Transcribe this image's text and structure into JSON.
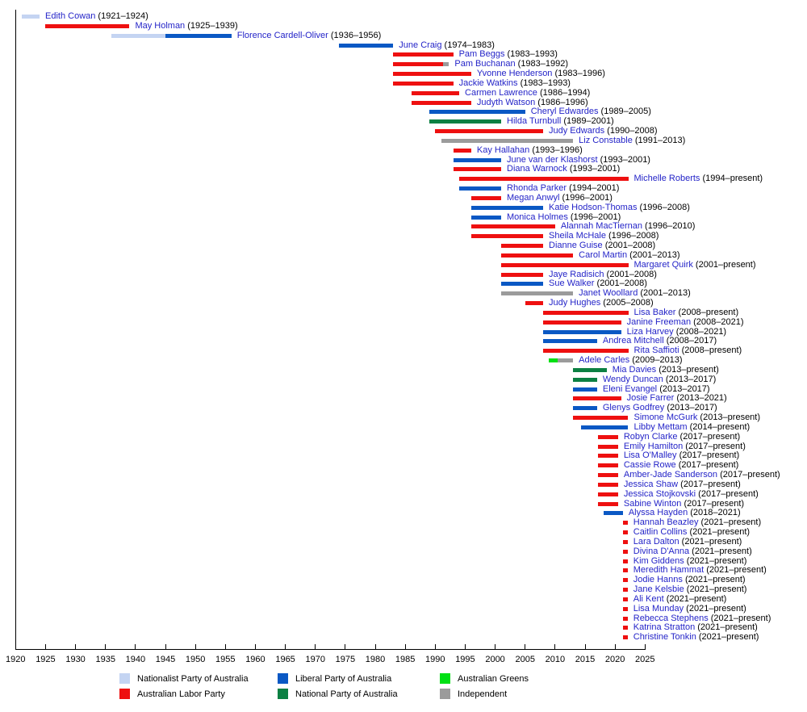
{
  "chart_data": {
    "type": "bar",
    "subtype": "horizontal-timeline",
    "title": "",
    "xlabel": "",
    "ylabel": "",
    "x_range": [
      1920,
      2025
    ],
    "grid": false,
    "axis": {
      "start": 1920,
      "end": 2025,
      "tick_step": 5,
      "ticks": [
        1920,
        1925,
        1930,
        1935,
        1940,
        1945,
        1950,
        1955,
        1960,
        1965,
        1970,
        1975,
        1980,
        1985,
        1990,
        1995,
        2000,
        2005,
        2010,
        2015,
        2020,
        2025
      ]
    },
    "name_link_color": "#2424c8",
    "year_text_color": "#000000",
    "parties": {
      "nationalist": {
        "label": "Nationalist Party of Australia",
        "color": "#c4d4f2"
      },
      "labor": {
        "label": "Australian Labor Party",
        "color": "#ee1010"
      },
      "liberal": {
        "label": "Liberal Party of Australia",
        "color": "#0a58c4"
      },
      "national": {
        "label": "National Party of Australia",
        "color": "#0c8043"
      },
      "greens": {
        "label": "Australian Greens",
        "color": "#00e014"
      },
      "independent": {
        "label": "Independent",
        "color": "#9b9b9b"
      }
    },
    "legend_position": "bottom",
    "members": [
      {
        "name": "Edith Cowan",
        "years": "(1921–1924)",
        "segments": [
          {
            "party": "nationalist",
            "start": 1921,
            "end": 1924
          }
        ]
      },
      {
        "name": "May Holman",
        "years": "(1925–1939)",
        "segments": [
          {
            "party": "labor",
            "start": 1925,
            "end": 1939
          }
        ]
      },
      {
        "name": "Florence Cardell-Oliver",
        "years": "(1936–1956)",
        "segments": [
          {
            "party": "nationalist",
            "start": 1936,
            "end": 1945
          },
          {
            "party": "liberal",
            "start": 1945,
            "end": 1956
          }
        ]
      },
      {
        "name": "June Craig",
        "years": "(1974–1983)",
        "segments": [
          {
            "party": "liberal",
            "start": 1974,
            "end": 1983
          }
        ]
      },
      {
        "name": "Pam Beggs",
        "years": "(1983–1993)",
        "segments": [
          {
            "party": "labor",
            "start": 1983,
            "end": 1993
          }
        ]
      },
      {
        "name": "Pam Buchanan",
        "years": "(1983–1992)",
        "segments": [
          {
            "party": "labor",
            "start": 1983,
            "end": 1991.3
          },
          {
            "party": "independent",
            "start": 1991.3,
            "end": 1992.3
          }
        ]
      },
      {
        "name": "Yvonne Henderson",
        "years": "(1983–1996)",
        "segments": [
          {
            "party": "labor",
            "start": 1983,
            "end": 1996
          }
        ]
      },
      {
        "name": "Jackie Watkins",
        "years": "(1983–1993)",
        "segments": [
          {
            "party": "labor",
            "start": 1983,
            "end": 1993
          }
        ]
      },
      {
        "name": "Carmen Lawrence",
        "years": "(1986–1994)",
        "segments": [
          {
            "party": "labor",
            "start": 1986,
            "end": 1994
          }
        ]
      },
      {
        "name": "Judyth Watson",
        "years": "(1986–1996)",
        "segments": [
          {
            "party": "labor",
            "start": 1986,
            "end": 1996
          }
        ]
      },
      {
        "name": "Cheryl Edwardes",
        "years": "(1989–2005)",
        "segments": [
          {
            "party": "liberal",
            "start": 1989,
            "end": 2005
          }
        ]
      },
      {
        "name": "Hilda Turnbull",
        "years": "(1989–2001)",
        "segments": [
          {
            "party": "national",
            "start": 1989,
            "end": 2001
          }
        ]
      },
      {
        "name": "Judy Edwards",
        "years": "(1990–2008)",
        "segments": [
          {
            "party": "labor",
            "start": 1990,
            "end": 2008
          }
        ]
      },
      {
        "name": "Liz Constable",
        "years": "(1991–2013)",
        "segments": [
          {
            "party": "independent",
            "start": 1991,
            "end": 2013
          }
        ]
      },
      {
        "name": "Kay Hallahan",
        "years": "(1993–1996)",
        "segments": [
          {
            "party": "labor",
            "start": 1993,
            "end": 1996
          }
        ]
      },
      {
        "name": "June van der Klashorst",
        "years": "(1993–2001)",
        "segments": [
          {
            "party": "liberal",
            "start": 1993,
            "end": 2001
          }
        ]
      },
      {
        "name": "Diana Warnock",
        "years": "(1993–2001)",
        "segments": [
          {
            "party": "labor",
            "start": 1993,
            "end": 2001
          }
        ]
      },
      {
        "name": "Michelle Roberts",
        "years": "(1994–present)",
        "segments": [
          {
            "party": "labor",
            "start": 1994,
            "end": 2022.2
          }
        ]
      },
      {
        "name": "Rhonda Parker",
        "years": "(1994–2001)",
        "segments": [
          {
            "party": "liberal",
            "start": 1994,
            "end": 2001
          }
        ]
      },
      {
        "name": "Megan Anwyl",
        "years": "(1996–2001)",
        "segments": [
          {
            "party": "labor",
            "start": 1996,
            "end": 2001
          }
        ]
      },
      {
        "name": "Katie Hodson-Thomas",
        "years": "(1996–2008)",
        "segments": [
          {
            "party": "liberal",
            "start": 1996,
            "end": 2008
          }
        ]
      },
      {
        "name": "Monica Holmes",
        "years": "(1996–2001)",
        "segments": [
          {
            "party": "liberal",
            "start": 1996,
            "end": 2001
          }
        ]
      },
      {
        "name": "Alannah MacTiernan",
        "years": "(1996–2010)",
        "segments": [
          {
            "party": "labor",
            "start": 1996,
            "end": 2010
          }
        ]
      },
      {
        "name": "Sheila McHale",
        "years": "(1996–2008)",
        "segments": [
          {
            "party": "labor",
            "start": 1996,
            "end": 2008
          }
        ]
      },
      {
        "name": "Dianne Guise",
        "years": "(2001–2008)",
        "segments": [
          {
            "party": "labor",
            "start": 2001,
            "end": 2008
          }
        ]
      },
      {
        "name": "Carol Martin",
        "years": "(2001–2013)",
        "segments": [
          {
            "party": "labor",
            "start": 2001,
            "end": 2013
          }
        ]
      },
      {
        "name": "Margaret Quirk",
        "years": "(2001–present)",
        "segments": [
          {
            "party": "labor",
            "start": 2001,
            "end": 2022.2
          }
        ]
      },
      {
        "name": "Jaye Radisich",
        "years": "(2001–2008)",
        "segments": [
          {
            "party": "labor",
            "start": 2001,
            "end": 2008
          }
        ]
      },
      {
        "name": "Sue Walker",
        "years": "(2001–2008)",
        "segments": [
          {
            "party": "liberal",
            "start": 2001,
            "end": 2008
          }
        ]
      },
      {
        "name": "Janet Woollard",
        "years": "(2001–2013)",
        "segments": [
          {
            "party": "independent",
            "start": 2001,
            "end": 2013
          }
        ]
      },
      {
        "name": "Judy Hughes",
        "years": "(2005–2008)",
        "segments": [
          {
            "party": "labor",
            "start": 2005,
            "end": 2008
          }
        ]
      },
      {
        "name": "Lisa Baker",
        "years": "(2008–present)",
        "segments": [
          {
            "party": "labor",
            "start": 2008,
            "end": 2022.2
          }
        ]
      },
      {
        "name": "Janine Freeman",
        "years": "(2008–2021)",
        "segments": [
          {
            "party": "labor",
            "start": 2008,
            "end": 2021
          }
        ]
      },
      {
        "name": "Liza Harvey",
        "years": "(2008–2021)",
        "segments": [
          {
            "party": "liberal",
            "start": 2008,
            "end": 2021
          }
        ]
      },
      {
        "name": "Andrea Mitchell",
        "years": "(2008–2017)",
        "segments": [
          {
            "party": "liberal",
            "start": 2008,
            "end": 2017
          }
        ]
      },
      {
        "name": "Rita Saffioti",
        "years": "(2008–present)",
        "segments": [
          {
            "party": "labor",
            "start": 2008,
            "end": 2022.2
          }
        ]
      },
      {
        "name": "Adele Carles",
        "years": "(2009–2013)",
        "segments": [
          {
            "party": "greens",
            "start": 2009,
            "end": 2010.4
          },
          {
            "party": "independent",
            "start": 2010.4,
            "end": 2013
          }
        ]
      },
      {
        "name": "Mia Davies",
        "years": "(2013–present)",
        "segments": [
          {
            "party": "national",
            "start": 2013,
            "end": 2018.6
          }
        ]
      },
      {
        "name": "Wendy Duncan",
        "years": "(2013–2017)",
        "segments": [
          {
            "party": "national",
            "start": 2013,
            "end": 2017
          }
        ]
      },
      {
        "name": "Eleni Evangel",
        "years": "(2013–2017)",
        "segments": [
          {
            "party": "liberal",
            "start": 2013,
            "end": 2017
          }
        ]
      },
      {
        "name": "Josie Farrer",
        "years": "(2013–2021)",
        "segments": [
          {
            "party": "labor",
            "start": 2013,
            "end": 2021
          }
        ]
      },
      {
        "name": "Glenys Godfrey",
        "years": "(2013–2017)",
        "segments": [
          {
            "party": "liberal",
            "start": 2013,
            "end": 2017
          }
        ]
      },
      {
        "name": "Simone McGurk",
        "years": "(2013–present)",
        "segments": [
          {
            "party": "labor",
            "start": 2013,
            "end": 2022.2
          }
        ]
      },
      {
        "name": "Libby Mettam",
        "years": "(2014–present)",
        "segments": [
          {
            "party": "liberal",
            "start": 2014.3,
            "end": 2022.2
          }
        ]
      },
      {
        "name": "Robyn Clarke",
        "years": "(2017–present)",
        "segments": [
          {
            "party": "labor",
            "start": 2017.2,
            "end": 2020.5
          }
        ]
      },
      {
        "name": "Emily Hamilton",
        "years": "(2017–present)",
        "segments": [
          {
            "party": "labor",
            "start": 2017.2,
            "end": 2020.5
          }
        ]
      },
      {
        "name": "Lisa O'Malley",
        "years": "(2017–present)",
        "segments": [
          {
            "party": "labor",
            "start": 2017.2,
            "end": 2020.5
          }
        ]
      },
      {
        "name": "Cassie Rowe",
        "years": "(2017–present)",
        "segments": [
          {
            "party": "labor",
            "start": 2017.2,
            "end": 2020.5
          }
        ]
      },
      {
        "name": "Amber-Jade Sanderson",
        "years": "(2017–present)",
        "segments": [
          {
            "party": "labor",
            "start": 2017.2,
            "end": 2020.5
          }
        ]
      },
      {
        "name": "Jessica Shaw",
        "years": "(2017–present)",
        "segments": [
          {
            "party": "labor",
            "start": 2017.2,
            "end": 2020.5
          }
        ]
      },
      {
        "name": "Jessica Stojkovski",
        "years": "(2017–present)",
        "segments": [
          {
            "party": "labor",
            "start": 2017.2,
            "end": 2020.5
          }
        ]
      },
      {
        "name": "Sabine Winton",
        "years": "(2017–present)",
        "segments": [
          {
            "party": "labor",
            "start": 2017.2,
            "end": 2020.5
          }
        ]
      },
      {
        "name": "Alyssa Hayden",
        "years": "(2018–2021)",
        "segments": [
          {
            "party": "liberal",
            "start": 2018.1,
            "end": 2021.3
          }
        ]
      },
      {
        "name": "Hannah Beazley",
        "years": "(2021–present)",
        "segments": [
          {
            "party": "labor",
            "start": 2021.3,
            "end": 2022.1
          }
        ]
      },
      {
        "name": "Caitlin Collins",
        "years": "(2021–present)",
        "segments": [
          {
            "party": "labor",
            "start": 2021.3,
            "end": 2022.1
          }
        ]
      },
      {
        "name": "Lara Dalton",
        "years": "(2021–present)",
        "segments": [
          {
            "party": "labor",
            "start": 2021.3,
            "end": 2022.1
          }
        ]
      },
      {
        "name": "Divina D'Anna",
        "years": "(2021–present)",
        "segments": [
          {
            "party": "labor",
            "start": 2021.3,
            "end": 2022.1
          }
        ]
      },
      {
        "name": "Kim Giddens",
        "years": "(2021–present)",
        "segments": [
          {
            "party": "labor",
            "start": 2021.3,
            "end": 2022.1
          }
        ]
      },
      {
        "name": "Meredith Hammat",
        "years": "(2021–present)",
        "segments": [
          {
            "party": "labor",
            "start": 2021.3,
            "end": 2022.1
          }
        ]
      },
      {
        "name": "Jodie Hanns",
        "years": "(2021–present)",
        "segments": [
          {
            "party": "labor",
            "start": 2021.3,
            "end": 2022.1
          }
        ]
      },
      {
        "name": "Jane Kelsbie",
        "years": "(2021–present)",
        "segments": [
          {
            "party": "labor",
            "start": 2021.3,
            "end": 2022.1
          }
        ]
      },
      {
        "name": "Ali Kent",
        "years": "(2021–present)",
        "segments": [
          {
            "party": "labor",
            "start": 2021.3,
            "end": 2022.1
          }
        ]
      },
      {
        "name": "Lisa Munday",
        "years": "(2021–present)",
        "segments": [
          {
            "party": "labor",
            "start": 2021.3,
            "end": 2022.1
          }
        ]
      },
      {
        "name": "Rebecca Stephens",
        "years": "(2021–present)",
        "segments": [
          {
            "party": "labor",
            "start": 2021.3,
            "end": 2022.1
          }
        ]
      },
      {
        "name": "Katrina Stratton",
        "years": "(2021–present)",
        "segments": [
          {
            "party": "labor",
            "start": 2021.3,
            "end": 2022.1
          }
        ]
      },
      {
        "name": "Christine Tonkin",
        "years": "(2021–present)",
        "segments": [
          {
            "party": "labor",
            "start": 2021.3,
            "end": 2022.1
          }
        ]
      }
    ]
  }
}
